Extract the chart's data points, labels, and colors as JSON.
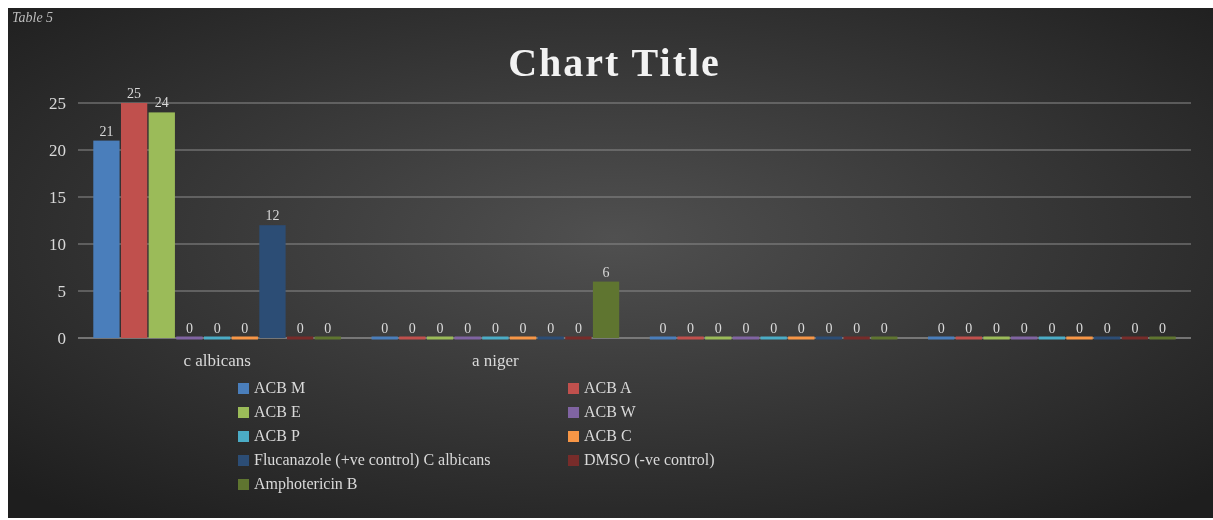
{
  "chart_data": {
    "type": "bar",
    "title": "Chart Title",
    "annotations": [
      "Table 5"
    ],
    "categories": [
      "c albicans",
      "a niger",
      null,
      null
    ],
    "series": [
      {
        "name": "ACB M",
        "color": "#4a7ebb",
        "values": [
          21,
          0,
          0,
          0
        ]
      },
      {
        "name": "ACB A",
        "color": "#c0504d",
        "values": [
          25,
          0,
          0,
          0
        ]
      },
      {
        "name": "ACB E",
        "color": "#9bbb59",
        "values": [
          24,
          0,
          0,
          0
        ]
      },
      {
        "name": "ACB W",
        "color": "#8064a2",
        "values": [
          0,
          0,
          0,
          0
        ]
      },
      {
        "name": "ACB P",
        "color": "#4bacc6",
        "values": [
          0,
          0,
          0,
          0
        ]
      },
      {
        "name": "ACB C",
        "color": "#f79646",
        "values": [
          0,
          0,
          0,
          0
        ]
      },
      {
        "name": "Flucanazole (+ve control) C albicans",
        "color": "#2c4d75",
        "values": [
          12,
          0,
          0,
          0
        ]
      },
      {
        "name": "DMSO (-ve control)",
        "color": "#772c2a",
        "values": [
          0,
          0,
          0,
          0
        ]
      },
      {
        "name": "Amphotericin B",
        "color": "#5f7530",
        "values": [
          0,
          6,
          0,
          0
        ]
      }
    ],
    "ylim": [
      0,
      25
    ],
    "yticks": [
      0,
      5,
      10,
      15,
      20,
      25
    ],
    "grid": "y",
    "data_labels": true,
    "legend": "bottom left"
  }
}
